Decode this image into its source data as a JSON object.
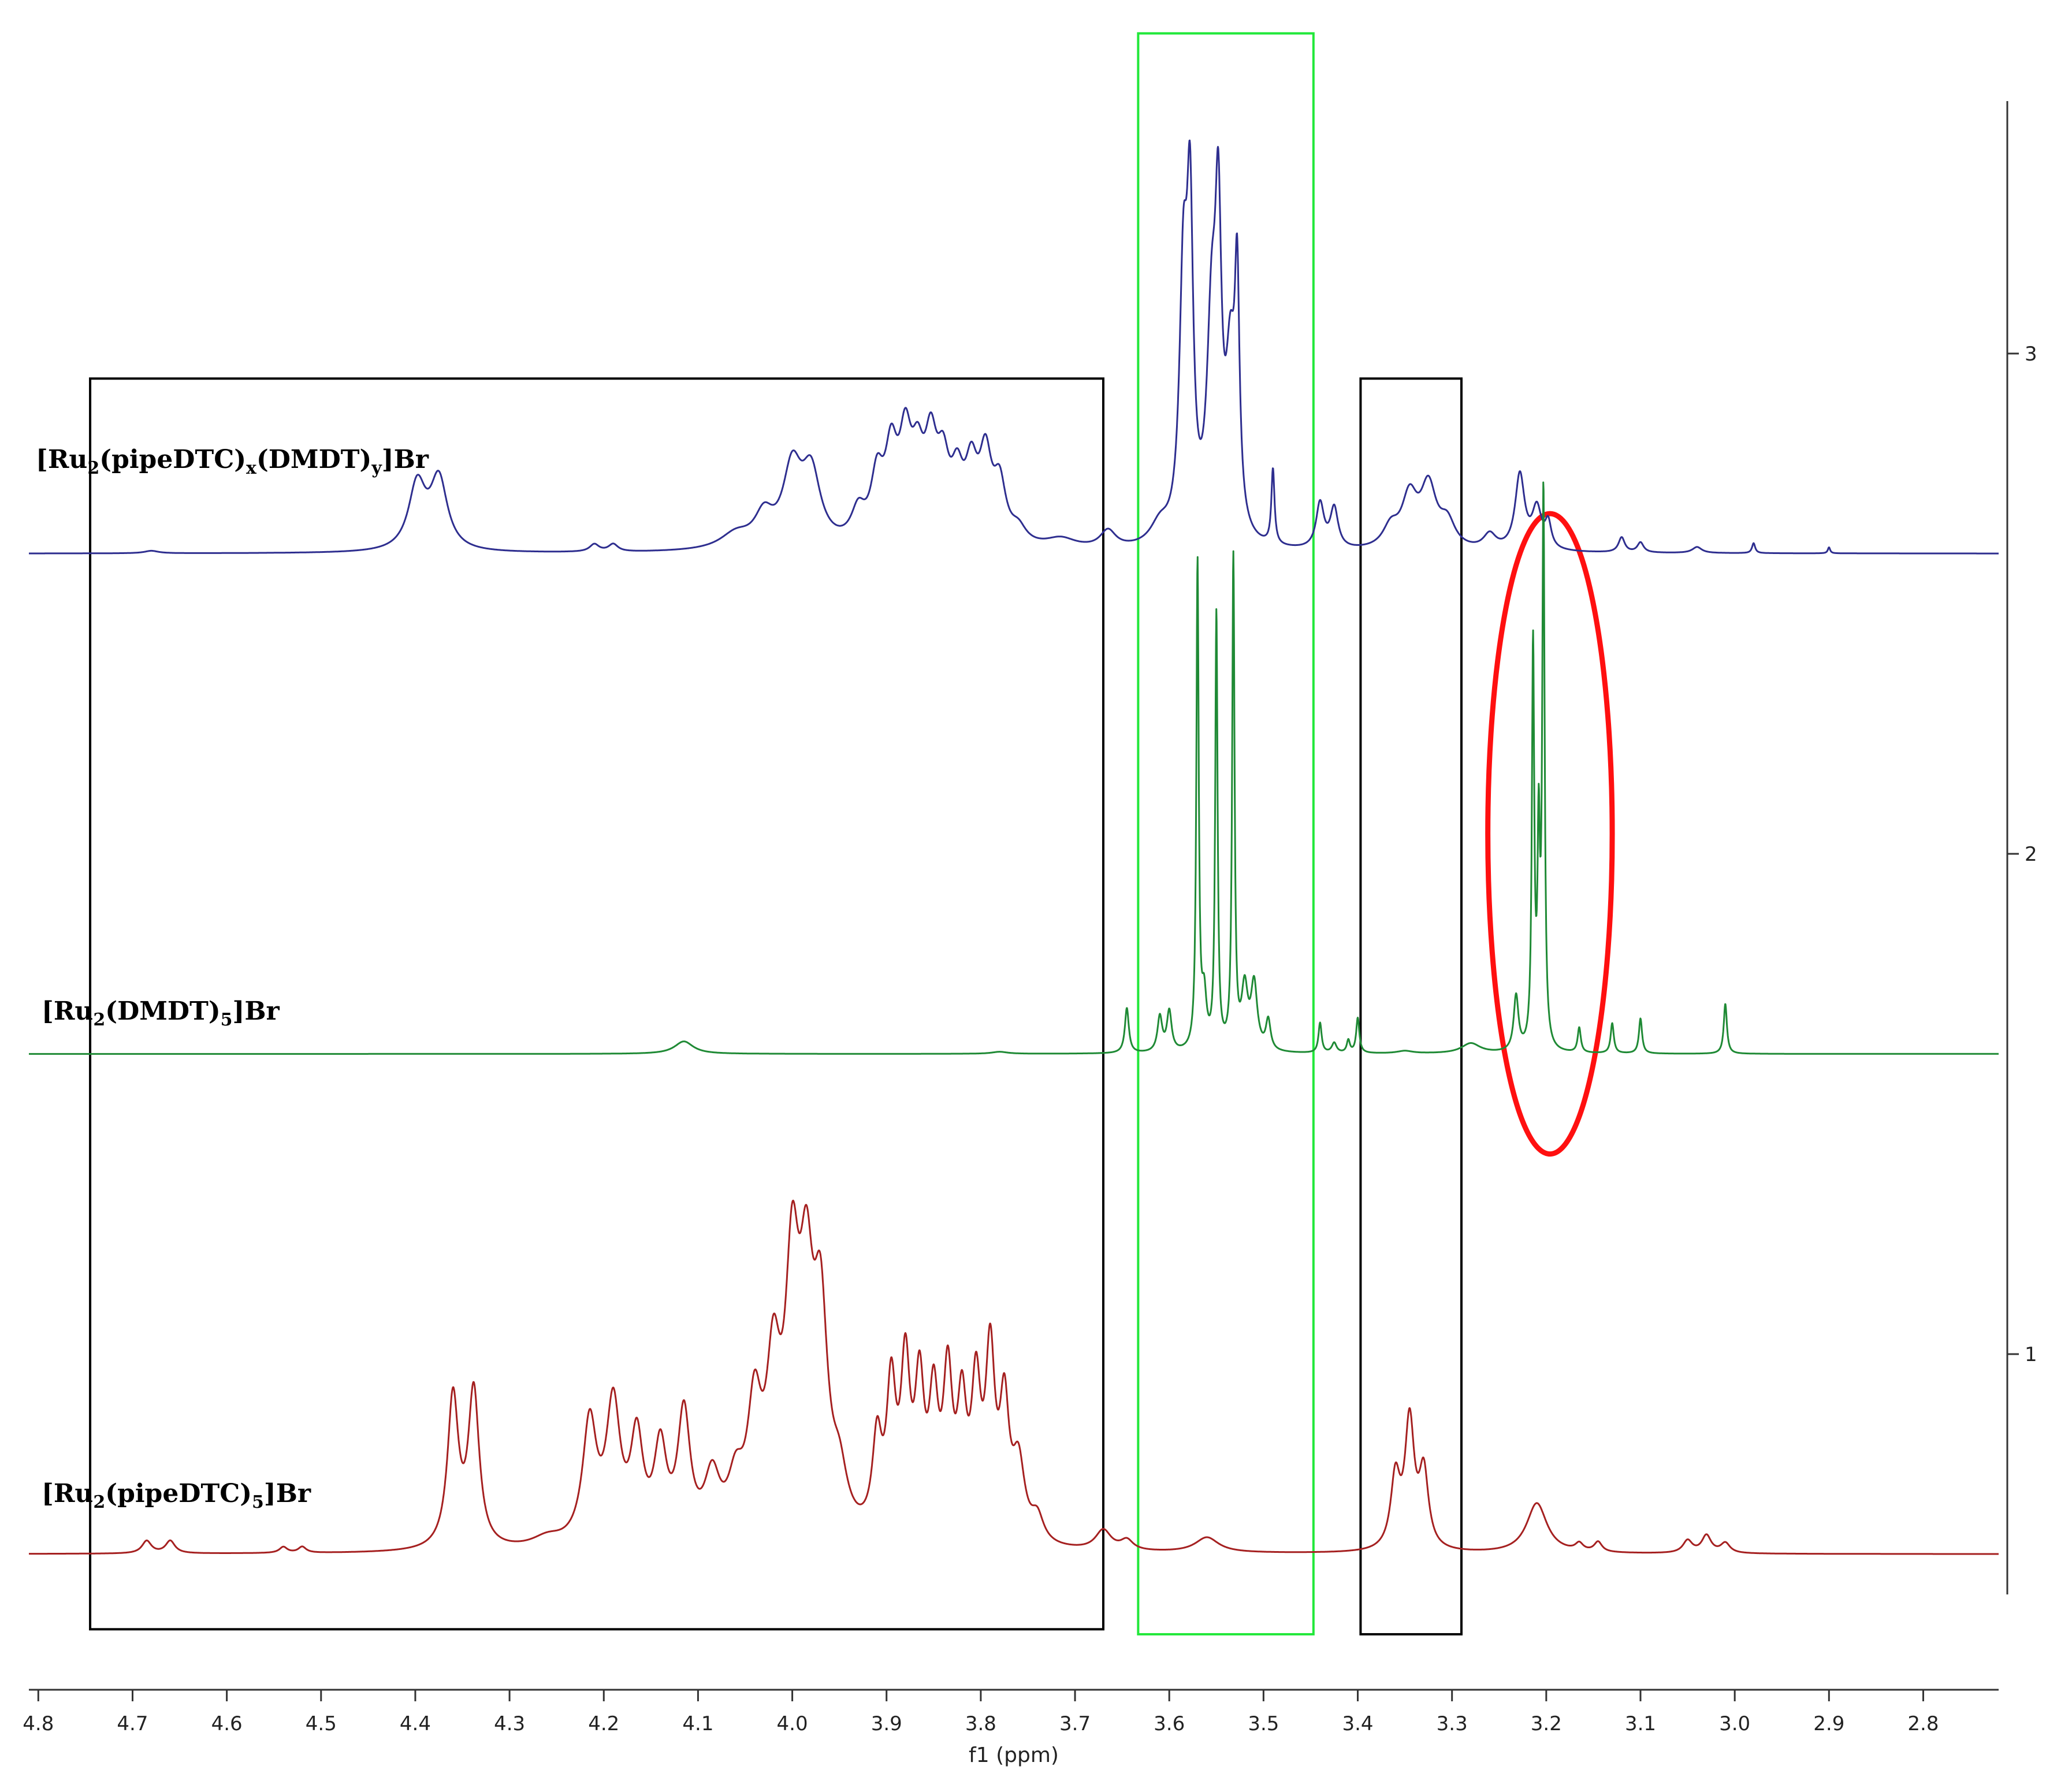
{
  "chart_data": {
    "type": "line",
    "title": "",
    "xlabel": "f1 (ppm)",
    "ylabel": "",
    "x_reversed": true,
    "xlim": [
      4.81,
      2.72
    ],
    "ylim": [
      0.4,
      3.45
    ],
    "x_ticks": [
      {
        "v": 4.8,
        "label": "4.8"
      },
      {
        "v": 4.7,
        "label": "4.7"
      },
      {
        "v": 4.6,
        "label": "4.6"
      },
      {
        "v": 4.5,
        "label": "4.5"
      },
      {
        "v": 4.4,
        "label": "4.4"
      },
      {
        "v": 4.3,
        "label": "4.3"
      },
      {
        "v": 4.2,
        "label": "4.2"
      },
      {
        "v": 4.1,
        "label": "4.1"
      },
      {
        "v": 4.0,
        "label": "4.0"
      },
      {
        "v": 3.9,
        "label": "3.9"
      },
      {
        "v": 3.8,
        "label": "3.8"
      },
      {
        "v": 3.7,
        "label": "3.7"
      },
      {
        "v": 3.6,
        "label": "3.6"
      },
      {
        "v": 3.5,
        "label": "3.5"
      },
      {
        "v": 3.4,
        "label": "3.4"
      },
      {
        "v": 3.3,
        "label": "3.3"
      },
      {
        "v": 3.2,
        "label": "3.2"
      },
      {
        "v": 3.1,
        "label": "3.1"
      },
      {
        "v": 3.0,
        "label": "3.0"
      },
      {
        "v": 2.9,
        "label": "2.9"
      },
      {
        "v": 2.8,
        "label": "2.8"
      }
    ],
    "y_ticks": [
      {
        "v": 1,
        "label": "1"
      },
      {
        "v": 2,
        "label": "2"
      },
      {
        "v": 3,
        "label": "3"
      }
    ],
    "series": [
      {
        "name": "[Ru2(pipeDTC)x(DMDT)y]Br",
        "label_parts": [
          {
            "t": "[Ru",
            "sub": false
          },
          {
            "t": "2",
            "sub": true
          },
          {
            "t": "(pipeDTC)",
            "sub": false
          },
          {
            "t": "x",
            "sub": true
          },
          {
            "t": "(DMDT)",
            "sub": false
          },
          {
            "t": "y",
            "sub": true
          },
          {
            "t": "]Br",
            "sub": false
          }
        ],
        "color": "#2e2e8f",
        "baseline": 2.6,
        "clip_top": 3.45,
        "peaks": [
          [
            4.68,
            0.005,
            0.009
          ],
          [
            4.398,
            0.13,
            0.011
          ],
          [
            4.375,
            0.14,
            0.011
          ],
          [
            4.21,
            0.015,
            0.006
          ],
          [
            4.19,
            0.015,
            0.006
          ],
          [
            4.06,
            0.03,
            0.02
          ],
          [
            4.03,
            0.06,
            0.012
          ],
          [
            4.0,
            0.15,
            0.012
          ],
          [
            3.98,
            0.14,
            0.012
          ],
          [
            3.93,
            0.06,
            0.009
          ],
          [
            3.91,
            0.12,
            0.008
          ],
          [
            3.895,
            0.16,
            0.008
          ],
          [
            3.88,
            0.18,
            0.008
          ],
          [
            3.867,
            0.13,
            0.008
          ],
          [
            3.853,
            0.17,
            0.008
          ],
          [
            3.84,
            0.13,
            0.008
          ],
          [
            3.825,
            0.11,
            0.008
          ],
          [
            3.81,
            0.13,
            0.008
          ],
          [
            3.795,
            0.16,
            0.008
          ],
          [
            3.78,
            0.11,
            0.008
          ],
          [
            3.76,
            0.03,
            0.01
          ],
          [
            3.715,
            0.02,
            0.02
          ],
          [
            3.665,
            0.035,
            0.01
          ],
          [
            3.61,
            0.04,
            0.012
          ],
          [
            3.585,
            0.5,
            0.005
          ],
          [
            3.578,
            0.6,
            0.004
          ],
          [
            3.555,
            0.4,
            0.006
          ],
          [
            3.548,
            0.55,
            0.004
          ],
          [
            3.535,
            0.32,
            0.006
          ],
          [
            3.528,
            0.45,
            0.003
          ],
          [
            3.49,
            0.15,
            0.002
          ],
          [
            3.44,
            0.09,
            0.005
          ],
          [
            3.425,
            0.08,
            0.005
          ],
          [
            3.365,
            0.04,
            0.01
          ],
          [
            3.345,
            0.1,
            0.01
          ],
          [
            3.325,
            0.12,
            0.01
          ],
          [
            3.305,
            0.05,
            0.01
          ],
          [
            3.26,
            0.03,
            0.008
          ],
          [
            3.228,
            0.15,
            0.006
          ],
          [
            3.21,
            0.08,
            0.006
          ],
          [
            3.198,
            0.05,
            0.004
          ],
          [
            3.12,
            0.03,
            0.004
          ],
          [
            3.1,
            0.02,
            0.004
          ],
          [
            3.04,
            0.012,
            0.006
          ],
          [
            2.98,
            0.02,
            0.002
          ],
          [
            2.9,
            0.012,
            0.0015
          ]
        ]
      },
      {
        "name": "[Ru2(DMDT)5]Br",
        "label_parts": [
          {
            "t": "[Ru",
            "sub": false
          },
          {
            "t": "2",
            "sub": true
          },
          {
            "t": "(DMDT)",
            "sub": false
          },
          {
            "t": "5",
            "sub": true
          },
          {
            "t": "]Br",
            "sub": false
          }
        ],
        "color": "#1f8a35",
        "baseline": 1.6,
        "clip_top": 3.45,
        "peaks": [
          [
            4.115,
            0.025,
            0.012
          ],
          [
            3.78,
            0.004,
            0.01
          ],
          [
            3.645,
            0.09,
            0.0025
          ],
          [
            3.61,
            0.07,
            0.003
          ],
          [
            3.6,
            0.08,
            0.003
          ],
          [
            3.57,
            0.97,
            0.0015
          ],
          [
            3.563,
            0.1,
            0.003
          ],
          [
            3.55,
            0.87,
            0.0015
          ],
          [
            3.532,
            0.98,
            0.0015
          ],
          [
            3.52,
            0.12,
            0.004
          ],
          [
            3.51,
            0.13,
            0.004
          ],
          [
            3.495,
            0.06,
            0.003
          ],
          [
            3.44,
            0.06,
            0.002
          ],
          [
            3.425,
            0.02,
            0.003
          ],
          [
            3.41,
            0.025,
            0.002
          ],
          [
            3.4,
            0.07,
            0.002
          ],
          [
            3.35,
            0.005,
            0.01
          ],
          [
            3.28,
            0.02,
            0.012
          ],
          [
            3.232,
            0.11,
            0.003
          ],
          [
            3.214,
            0.8,
            0.0015
          ],
          [
            3.208,
            0.4,
            0.0015
          ],
          [
            3.203,
            1.1,
            0.0015
          ],
          [
            3.165,
            0.05,
            0.002
          ],
          [
            3.13,
            0.06,
            0.002
          ],
          [
            3.1,
            0.07,
            0.002
          ],
          [
            3.01,
            0.1,
            0.002
          ]
        ]
      },
      {
        "name": "[Ru2(pipeDTC)5]Br",
        "label_parts": [
          {
            "t": "[Ru",
            "sub": false
          },
          {
            "t": "2",
            "sub": true
          },
          {
            "t": "(pipeDTC)",
            "sub": false
          },
          {
            "t": "5",
            "sub": true
          },
          {
            "t": "]Br",
            "sub": false
          }
        ],
        "color": "#a52020",
        "baseline": 0.6,
        "clip_top": 3.45,
        "peaks": [
          [
            4.685,
            0.025,
            0.006
          ],
          [
            4.66,
            0.025,
            0.006
          ],
          [
            4.54,
            0.012,
            0.005
          ],
          [
            4.52,
            0.012,
            0.005
          ],
          [
            4.36,
            0.3,
            0.007
          ],
          [
            4.338,
            0.31,
            0.007
          ],
          [
            4.26,
            0.02,
            0.02
          ],
          [
            4.215,
            0.24,
            0.009
          ],
          [
            4.19,
            0.27,
            0.009
          ],
          [
            4.165,
            0.2,
            0.008
          ],
          [
            4.14,
            0.18,
            0.008
          ],
          [
            4.115,
            0.25,
            0.008
          ],
          [
            4.085,
            0.12,
            0.01
          ],
          [
            4.06,
            0.1,
            0.01
          ],
          [
            4.04,
            0.24,
            0.009
          ],
          [
            4.02,
            0.3,
            0.009
          ],
          [
            4.0,
            0.48,
            0.009
          ],
          [
            3.985,
            0.42,
            0.009
          ],
          [
            3.97,
            0.4,
            0.009
          ],
          [
            3.95,
            0.1,
            0.01
          ],
          [
            3.91,
            0.18,
            0.006
          ],
          [
            3.895,
            0.28,
            0.006
          ],
          [
            3.88,
            0.32,
            0.006
          ],
          [
            3.865,
            0.28,
            0.006
          ],
          [
            3.85,
            0.25,
            0.006
          ],
          [
            3.835,
            0.3,
            0.006
          ],
          [
            3.82,
            0.24,
            0.006
          ],
          [
            3.805,
            0.28,
            0.006
          ],
          [
            3.79,
            0.35,
            0.006
          ],
          [
            3.775,
            0.25,
            0.006
          ],
          [
            3.76,
            0.15,
            0.008
          ],
          [
            3.74,
            0.05,
            0.008
          ],
          [
            3.67,
            0.04,
            0.01
          ],
          [
            3.645,
            0.02,
            0.008
          ],
          [
            3.56,
            0.03,
            0.015
          ],
          [
            3.36,
            0.14,
            0.006
          ],
          [
            3.345,
            0.25,
            0.006
          ],
          [
            3.33,
            0.15,
            0.006
          ],
          [
            3.21,
            0.1,
            0.013
          ],
          [
            3.165,
            0.015,
            0.005
          ],
          [
            3.145,
            0.02,
            0.005
          ],
          [
            3.05,
            0.025,
            0.006
          ],
          [
            3.03,
            0.035,
            0.006
          ],
          [
            3.01,
            0.02,
            0.006
          ]
        ]
      }
    ],
    "annotations": [
      {
        "type": "rect",
        "color": "#000000",
        "x1": 4.745,
        "x2": 3.67,
        "y_top": 2.95,
        "y_bottom": 0.45
      },
      {
        "type": "rect",
        "color": "#22e83a",
        "x1": 3.633,
        "x2": 3.447,
        "y_top": 3.64,
        "y_bottom": 0.44
      },
      {
        "type": "rect",
        "color": "#000000",
        "x1": 3.397,
        "x2": 3.29,
        "y_top": 2.95,
        "y_bottom": 0.44
      },
      {
        "type": "ellipse",
        "color": "#ff1010",
        "cx": 3.196,
        "cy": 2.04,
        "rx": 0.066,
        "ry": 0.64
      }
    ]
  }
}
